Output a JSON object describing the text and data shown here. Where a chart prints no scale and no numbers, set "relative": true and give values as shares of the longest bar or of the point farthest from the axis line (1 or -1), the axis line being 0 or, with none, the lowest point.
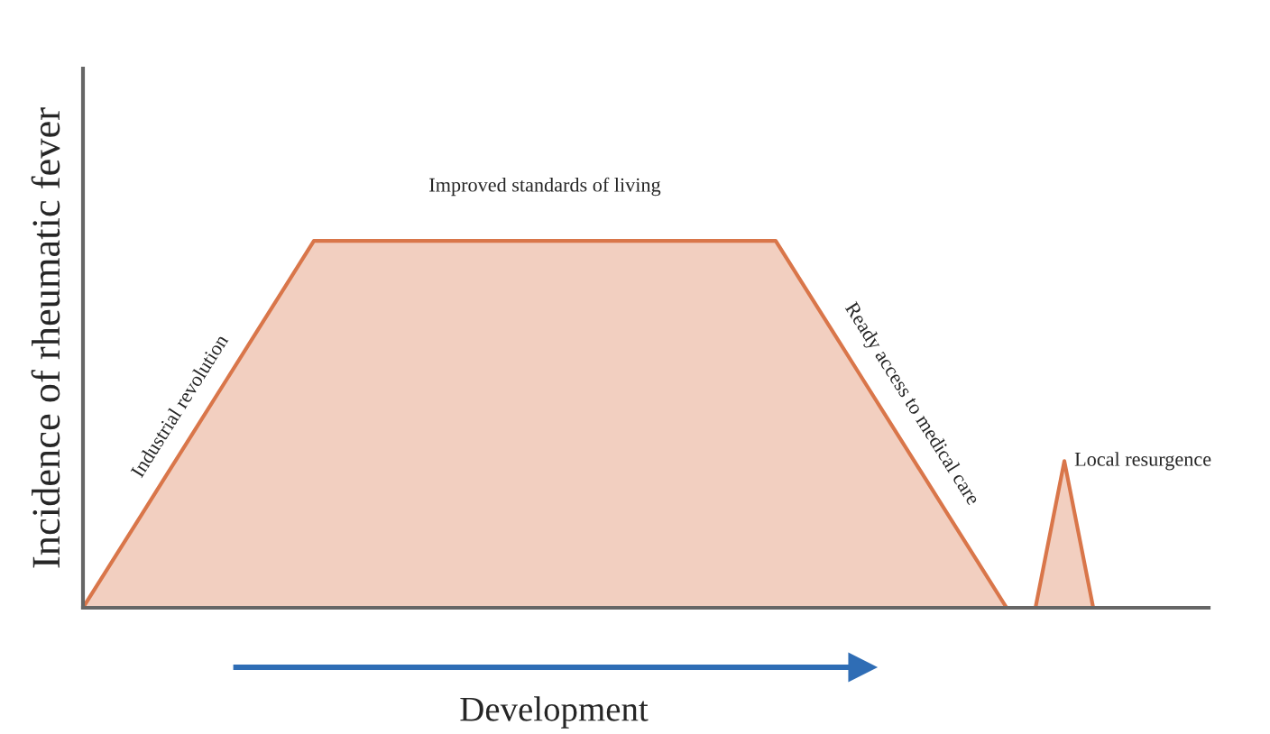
{
  "chart_data": {
    "type": "area",
    "relative": true,
    "xlabel": "Development",
    "ylabel": "Incidence of rheumatic fever",
    "categories": [
      null,
      null,
      null,
      null,
      null,
      null,
      null,
      null,
      null,
      null,
      null,
      null,
      null,
      null,
      null,
      null,
      null,
      null,
      null,
      null,
      null,
      null,
      null,
      null,
      null,
      null,
      null,
      null,
      null,
      null,
      null,
      null,
      null,
      null,
      null,
      null,
      null,
      null,
      null,
      null
    ],
    "series": [
      {
        "color": "#d9764a",
        "values": [
          0,
          0.125,
          0.25,
          0.375,
          0.5,
          0.625,
          0.75,
          0.875,
          1,
          1,
          1,
          1,
          1,
          1,
          1,
          1,
          1,
          1,
          1,
          1,
          1,
          1,
          1,
          1,
          1,
          0.875,
          0.75,
          0.625,
          0.5,
          0.375,
          0.25,
          0.125,
          0,
          0,
          0.4,
          0,
          null,
          null,
          null,
          null
        ]
      }
    ],
    "annotations": [
      "Industrial revolution",
      "Improved standards of living",
      "Ready access to medical care",
      "Local resurgence"
    ]
  }
}
